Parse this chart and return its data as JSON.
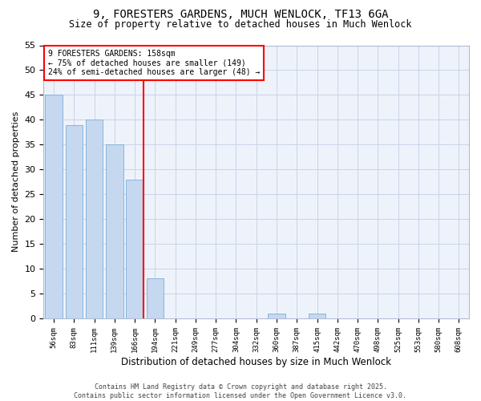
{
  "title1": "9, FORESTERS GARDENS, MUCH WENLOCK, TF13 6GA",
  "title2": "Size of property relative to detached houses in Much Wenlock",
  "xlabel": "Distribution of detached houses by size in Much Wenlock",
  "ylabel": "Number of detached properties",
  "categories": [
    "56sqm",
    "83sqm",
    "111sqm",
    "139sqm",
    "166sqm",
    "194sqm",
    "221sqm",
    "249sqm",
    "277sqm",
    "304sqm",
    "332sqm",
    "360sqm",
    "387sqm",
    "415sqm",
    "442sqm",
    "470sqm",
    "498sqm",
    "525sqm",
    "553sqm",
    "580sqm",
    "608sqm"
  ],
  "values": [
    45,
    39,
    40,
    35,
    28,
    8,
    0,
    0,
    0,
    0,
    0,
    1,
    0,
    1,
    0,
    0,
    0,
    0,
    0,
    0,
    0
  ],
  "bar_color": "#c5d8f0",
  "bar_edgecolor": "#7aaed6",
  "grid_color": "#c8d4e8",
  "background_color": "#ffffff",
  "plot_bg_color": "#eef3fb",
  "vline_index": 4,
  "vline_color": "red",
  "annotation_line1": "9 FORESTERS GARDENS: 158sqm",
  "annotation_line2": "← 75% of detached houses are smaller (149)",
  "annotation_line3": "24% of semi-detached houses are larger (48) →",
  "annotation_box_edgecolor": "red",
  "annotation_box_facecolor": "#ffffff",
  "footer_text": "Contains HM Land Registry data © Crown copyright and database right 2025.\nContains public sector information licensed under the Open Government Licence v3.0.",
  "ylim": [
    0,
    55
  ],
  "yticks": [
    0,
    5,
    10,
    15,
    20,
    25,
    30,
    35,
    40,
    45,
    50,
    55
  ]
}
